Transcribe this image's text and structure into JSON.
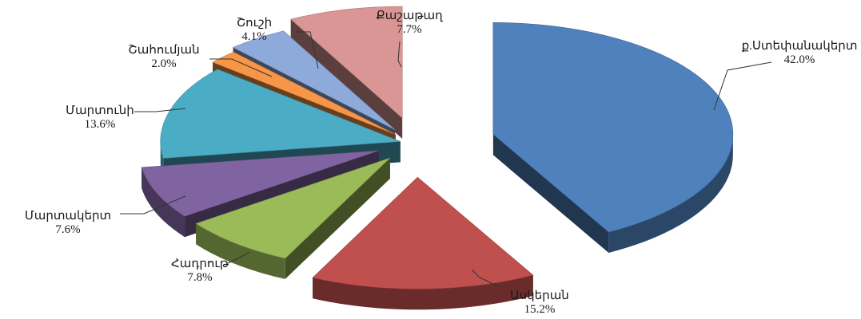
{
  "chart_data": {
    "type": "pie",
    "title": "",
    "style": "3d-exploded",
    "slices": [
      {
        "label": "ք.Ստեփանակերտ",
        "value": 42.0,
        "value_label": "42.0%",
        "color": "#4f81bd"
      },
      {
        "label": "Ասկերան",
        "value": 15.2,
        "value_label": "15.2%",
        "color": "#c0504d"
      },
      {
        "label": "Հադրութ",
        "value": 7.8,
        "value_label": "7.8%",
        "color": "#9bbb59"
      },
      {
        "label": "Մարտակերտ",
        "value": 7.6,
        "value_label": "7.6%",
        "color": "#8064a2"
      },
      {
        "label": "Մարտունի",
        "value": 13.6,
        "value_label": "13.6%",
        "color": "#4bacc6"
      },
      {
        "label": "Շահումյան",
        "value": 2.0,
        "value_label": "2.0%",
        "color": "#f79646"
      },
      {
        "label": "Շուշի",
        "value": 4.1,
        "value_label": "4.1%",
        "color": "#8eaadb"
      },
      {
        "label": "Քաշաթաղ",
        "value": 7.7,
        "value_label": "7.7%",
        "color": "#d99694"
      }
    ]
  }
}
